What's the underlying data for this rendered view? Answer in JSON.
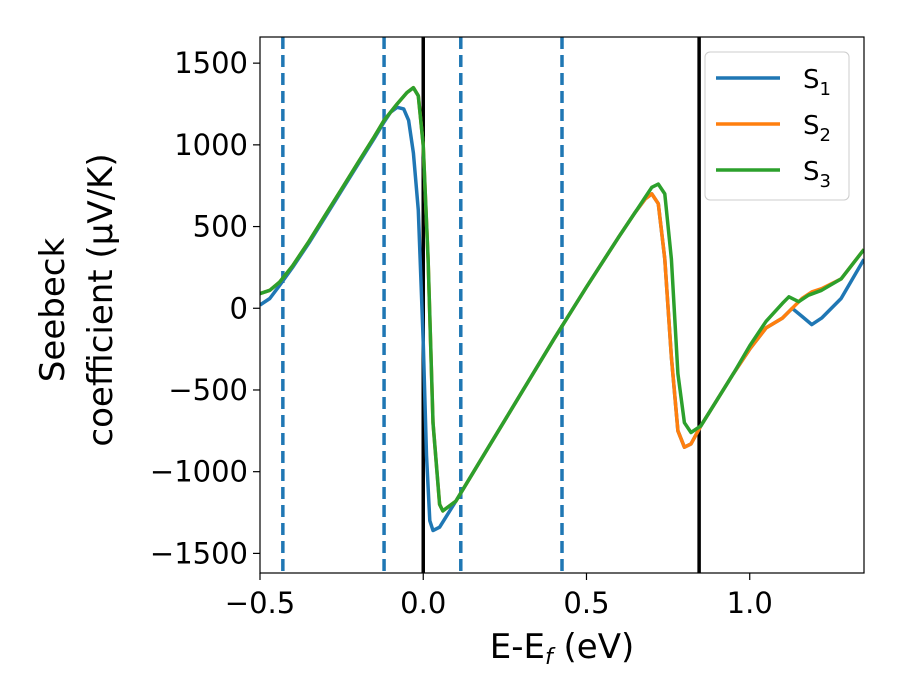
{
  "chart_data": {
    "type": "line",
    "xlabel": "E-E_f (eV)",
    "ylabel_line1": "Seebeck",
    "ylabel_line2": "coefficient  (μV/K)",
    "xlim": [
      -0.5,
      1.35
    ],
    "ylim": [
      -1620,
      1660
    ],
    "xticks": [
      {
        "value": -0.5,
        "label": "−0.5"
      },
      {
        "value": 0.0,
        "label": "0.0"
      },
      {
        "value": 0.5,
        "label": "0.5"
      },
      {
        "value": 1.0,
        "label": "1.0"
      }
    ],
    "yticks": [
      {
        "value": 1500,
        "label": "1500"
      },
      {
        "value": 1000,
        "label": "1000"
      },
      {
        "value": 500,
        "label": "500"
      },
      {
        "value": 0,
        "label": "0"
      },
      {
        "value": -500,
        "label": "−500"
      },
      {
        "value": -1000,
        "label": "−1000"
      },
      {
        "value": -1500,
        "label": "−1500"
      }
    ],
    "grid": false,
    "legend_placement": "top-right",
    "series": [
      {
        "name": "S",
        "subscript": "1",
        "color": "#1f77b4",
        "points": [
          [
            -0.5,
            20
          ],
          [
            -0.47,
            60
          ],
          [
            -0.44,
            140
          ],
          [
            -0.4,
            250
          ],
          [
            -0.35,
            400
          ],
          [
            -0.3,
            560
          ],
          [
            -0.25,
            720
          ],
          [
            -0.2,
            880
          ],
          [
            -0.15,
            1040
          ],
          [
            -0.12,
            1140
          ],
          [
            -0.1,
            1200
          ],
          [
            -0.08,
            1230
          ],
          [
            -0.06,
            1220
          ],
          [
            -0.045,
            1150
          ],
          [
            -0.03,
            950
          ],
          [
            -0.015,
            600
          ],
          [
            0.0,
            -200
          ],
          [
            0.01,
            -900
          ],
          [
            0.02,
            -1300
          ],
          [
            0.03,
            -1360
          ],
          [
            0.05,
            -1340
          ],
          [
            0.1,
            -1180
          ],
          [
            0.2,
            -850
          ],
          [
            0.3,
            -520
          ],
          [
            0.4,
            -190
          ],
          [
            0.5,
            130
          ],
          [
            0.6,
            440
          ],
          [
            0.65,
            590
          ],
          [
            0.68,
            670
          ],
          [
            0.7,
            700
          ],
          [
            0.72,
            640
          ],
          [
            0.74,
            300
          ],
          [
            0.76,
            -300
          ],
          [
            0.78,
            -750
          ],
          [
            0.8,
            -850
          ],
          [
            0.82,
            -830
          ],
          [
            0.85,
            -720
          ],
          [
            0.9,
            -560
          ],
          [
            0.95,
            -400
          ],
          [
            1.0,
            -250
          ],
          [
            1.05,
            -120
          ],
          [
            1.1,
            -60
          ],
          [
            1.13,
            0
          ],
          [
            1.16,
            -50
          ],
          [
            1.19,
            -100
          ],
          [
            1.22,
            -60
          ],
          [
            1.28,
            60
          ],
          [
            1.35,
            300
          ]
        ]
      },
      {
        "name": "S",
        "subscript": "2",
        "color": "#ff7f0e",
        "points": [
          [
            -0.5,
            90
          ],
          [
            -0.47,
            110
          ],
          [
            -0.44,
            160
          ],
          [
            -0.4,
            260
          ],
          [
            -0.35,
            410
          ],
          [
            -0.3,
            570
          ],
          [
            -0.25,
            730
          ],
          [
            -0.2,
            890
          ],
          [
            -0.15,
            1050
          ],
          [
            -0.12,
            1150
          ],
          [
            -0.08,
            1250
          ],
          [
            -0.05,
            1320
          ],
          [
            -0.03,
            1350
          ],
          [
            -0.015,
            1300
          ],
          [
            0.0,
            1000
          ],
          [
            0.015,
            300
          ],
          [
            0.03,
            -700
          ],
          [
            0.05,
            -1200
          ],
          [
            0.06,
            -1240
          ],
          [
            0.1,
            -1180
          ],
          [
            0.2,
            -850
          ],
          [
            0.3,
            -520
          ],
          [
            0.4,
            -190
          ],
          [
            0.5,
            130
          ],
          [
            0.6,
            440
          ],
          [
            0.65,
            590
          ],
          [
            0.68,
            670
          ],
          [
            0.7,
            700
          ],
          [
            0.72,
            640
          ],
          [
            0.74,
            300
          ],
          [
            0.76,
            -300
          ],
          [
            0.78,
            -750
          ],
          [
            0.8,
            -850
          ],
          [
            0.82,
            -830
          ],
          [
            0.85,
            -720
          ],
          [
            0.9,
            -560
          ],
          [
            0.95,
            -400
          ],
          [
            1.0,
            -250
          ],
          [
            1.05,
            -120
          ],
          [
            1.1,
            -60
          ],
          [
            1.13,
            0
          ],
          [
            1.16,
            60
          ],
          [
            1.19,
            100
          ],
          [
            1.22,
            120
          ],
          [
            1.28,
            180
          ],
          [
            1.35,
            360
          ]
        ]
      },
      {
        "name": "S",
        "subscript": "3",
        "color": "#2ca02c",
        "points": [
          [
            -0.5,
            90
          ],
          [
            -0.47,
            110
          ],
          [
            -0.44,
            160
          ],
          [
            -0.4,
            260
          ],
          [
            -0.35,
            410
          ],
          [
            -0.3,
            570
          ],
          [
            -0.25,
            730
          ],
          [
            -0.2,
            890
          ],
          [
            -0.15,
            1050
          ],
          [
            -0.12,
            1150
          ],
          [
            -0.08,
            1250
          ],
          [
            -0.05,
            1320
          ],
          [
            -0.03,
            1350
          ],
          [
            -0.015,
            1300
          ],
          [
            0.0,
            1000
          ],
          [
            0.015,
            300
          ],
          [
            0.03,
            -700
          ],
          [
            0.05,
            -1200
          ],
          [
            0.06,
            -1240
          ],
          [
            0.1,
            -1180
          ],
          [
            0.2,
            -850
          ],
          [
            0.3,
            -520
          ],
          [
            0.4,
            -190
          ],
          [
            0.5,
            130
          ],
          [
            0.6,
            440
          ],
          [
            0.65,
            590
          ],
          [
            0.68,
            680
          ],
          [
            0.7,
            740
          ],
          [
            0.72,
            760
          ],
          [
            0.74,
            700
          ],
          [
            0.76,
            300
          ],
          [
            0.78,
            -400
          ],
          [
            0.8,
            -700
          ],
          [
            0.82,
            -760
          ],
          [
            0.85,
            -720
          ],
          [
            0.9,
            -560
          ],
          [
            0.95,
            -400
          ],
          [
            1.0,
            -230
          ],
          [
            1.05,
            -80
          ],
          [
            1.1,
            30
          ],
          [
            1.12,
            70
          ],
          [
            1.15,
            40
          ],
          [
            1.18,
            80
          ],
          [
            1.22,
            110
          ],
          [
            1.28,
            180
          ],
          [
            1.35,
            360
          ]
        ]
      }
    ],
    "vlines": [
      {
        "x": -0.43,
        "style": "dashed",
        "color": "#1f77b4"
      },
      {
        "x": -0.12,
        "style": "dashed",
        "color": "#1f77b4"
      },
      {
        "x": 0.0,
        "style": "solid",
        "color": "#000000"
      },
      {
        "x": 0.115,
        "style": "dashed",
        "color": "#1f77b4"
      },
      {
        "x": 0.425,
        "style": "dashed",
        "color": "#1f77b4"
      },
      {
        "x": 0.845,
        "style": "solid",
        "color": "#000000"
      }
    ]
  }
}
